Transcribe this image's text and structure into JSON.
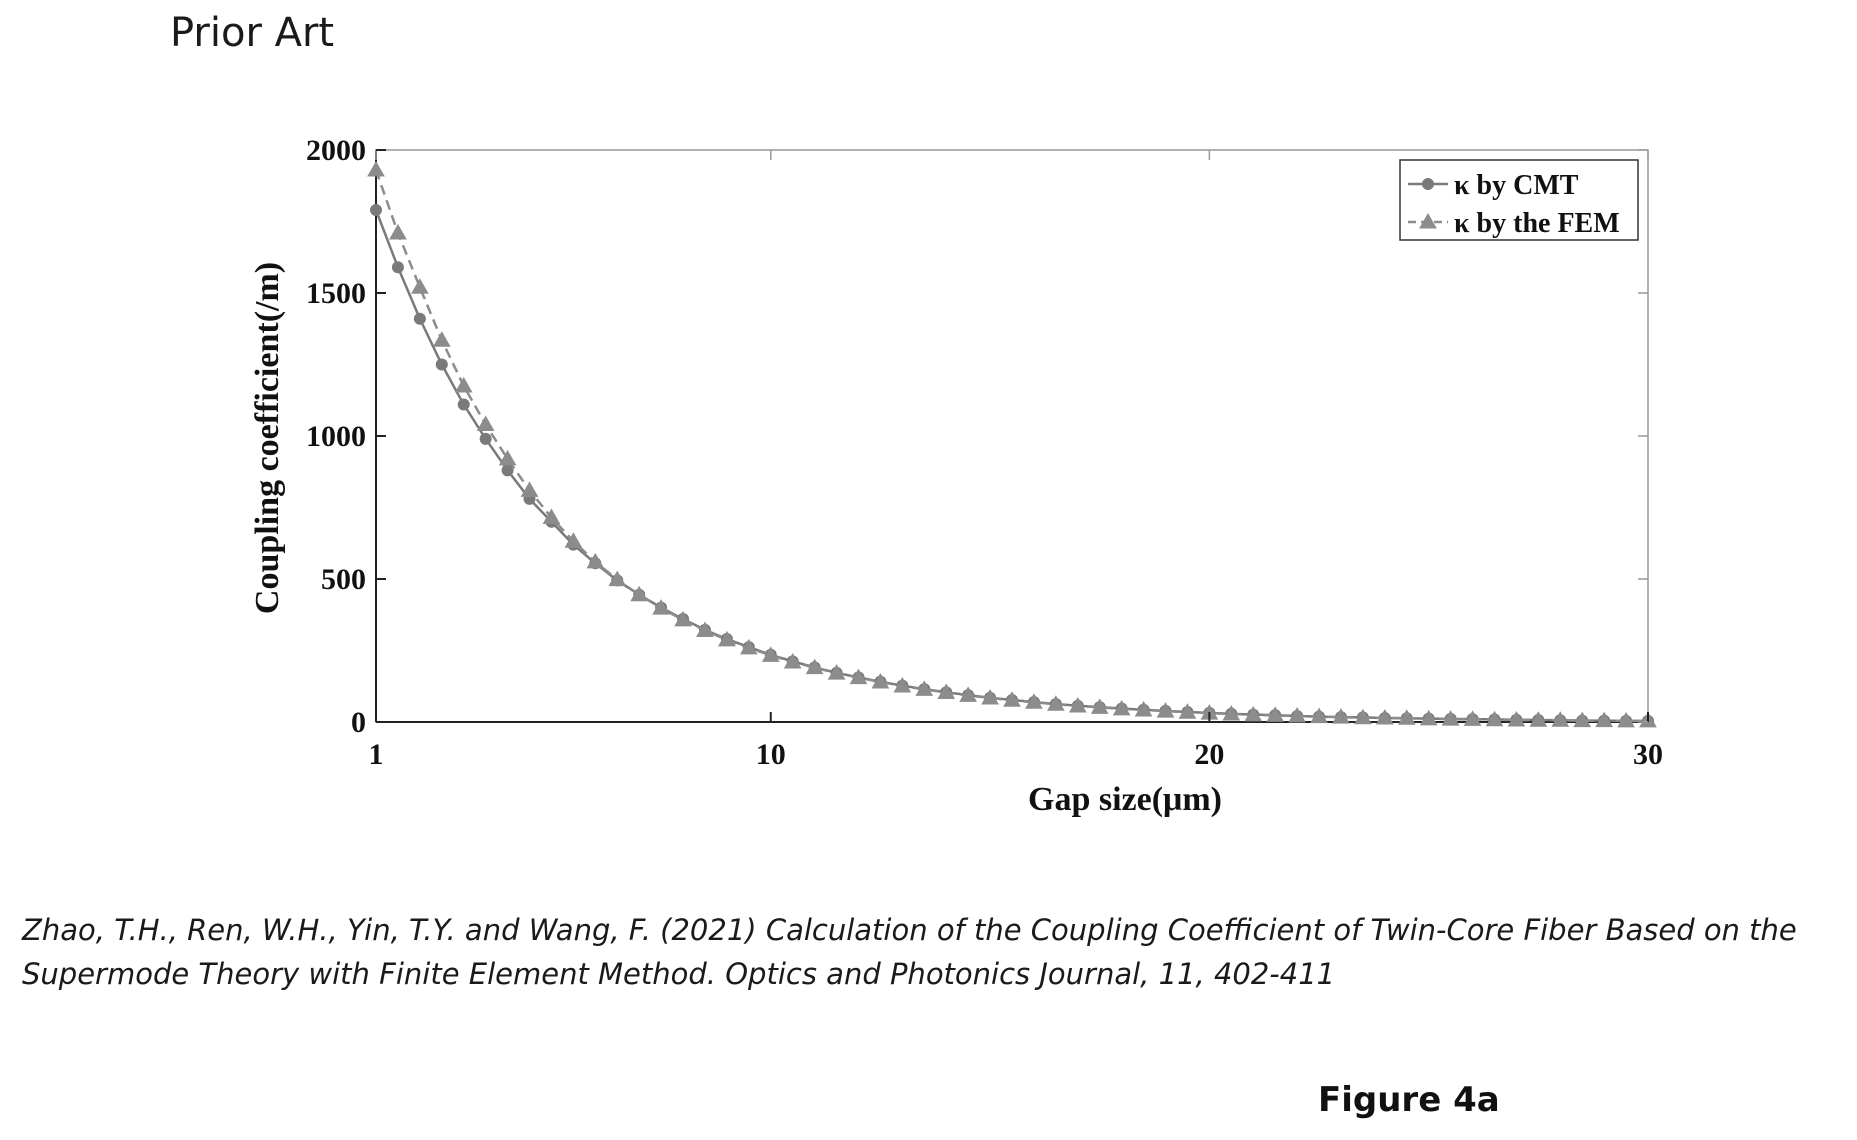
{
  "header": "Prior Art",
  "citation": {
    "line1": "Zhao, T.H., Ren, W.H., Yin, T.Y. and Wang, F. (2021) Calculation of the Coupling Coefficient of Twin-Core Fiber Based on the",
    "line2": "Supermode Theory with Finite Element Method. Optics and Photonics Journal, 11, 402-411"
  },
  "figure_label": "Figure 4a",
  "chart_data": {
    "type": "line",
    "xlabel": "Gap size(μm)",
    "ylabel": "Coupling coefficient(/m)",
    "xlim": [
      1,
      30
    ],
    "ylim": [
      0,
      2000
    ],
    "x_ticks": [
      1,
      10,
      20,
      30
    ],
    "y_ticks": [
      0,
      500,
      1000,
      1500,
      2000
    ],
    "grid": false,
    "legend_position": "top-right",
    "colors": {
      "cmt": "#7a7a7a",
      "fem": "#8c8c8c",
      "axes": "#222222"
    },
    "series": [
      {
        "name": "κ by CMT",
        "marker": "circle",
        "line": "solid",
        "x": [
          1.0,
          1.5,
          2.0,
          2.5,
          3.0,
          3.5,
          4.0,
          4.5,
          5.0,
          5.5,
          6.0,
          6.5,
          7.0,
          7.5,
          8.0,
          8.5,
          9.0,
          9.5,
          10.0,
          10.5,
          11.0,
          11.5,
          12.0,
          12.5,
          13.0,
          13.5,
          14.0,
          14.5,
          15.0,
          15.5,
          16.0,
          16.5,
          17.0,
          17.5,
          18.0,
          18.5,
          19.0,
          19.5,
          20.0,
          20.5,
          21.0,
          21.5,
          22.0,
          22.5,
          23.0,
          23.5,
          24.0,
          24.5,
          25.0,
          25.5,
          26.0,
          26.5,
          27.0,
          27.5,
          28.0,
          28.5,
          29.0,
          29.5,
          30.0
        ],
        "values": [
          1790,
          1590,
          1410,
          1250,
          1110,
          990,
          880,
          780,
          700,
          620,
          555,
          495,
          445,
          400,
          360,
          322,
          290,
          262,
          235,
          212,
          191,
          172,
          156,
          141,
          127,
          115,
          104,
          94,
          85,
          77,
          70,
          63,
          57,
          52,
          47,
          43,
          39,
          35,
          32,
          29,
          26,
          24,
          21,
          19,
          17,
          16,
          14,
          13,
          12,
          11,
          10,
          9,
          8,
          7,
          6,
          5,
          5,
          4,
          4
        ]
      },
      {
        "name": "κ by the FEM",
        "marker": "triangle",
        "line": "dashed",
        "x": [
          1.0,
          1.5,
          2.0,
          2.5,
          3.0,
          3.5,
          4.0,
          4.5,
          5.0,
          5.5,
          6.0,
          6.5,
          7.0,
          7.5,
          8.0,
          8.5,
          9.0,
          9.5,
          10.0,
          10.5,
          11.0,
          11.5,
          12.0,
          12.5,
          13.0,
          13.5,
          14.0,
          14.5,
          15.0,
          15.5,
          16.0,
          16.5,
          17.0,
          17.5,
          18.0,
          18.5,
          19.0,
          19.5,
          20.0,
          20.5,
          21.0,
          21.5,
          22.0,
          22.5,
          23.0,
          23.5,
          24.0,
          24.5,
          25.0,
          25.5,
          26.0,
          26.5,
          27.0,
          27.5,
          28.0,
          28.5,
          29.0,
          29.5,
          30.0
        ],
        "values": [
          1930,
          1710,
          1520,
          1335,
          1175,
          1040,
          920,
          810,
          715,
          632,
          560,
          498,
          445,
          398,
          357,
          320,
          287,
          259,
          233,
          210,
          190,
          171,
          155,
          140,
          126,
          114,
          103,
          93,
          84,
          76,
          69,
          62,
          56,
          51,
          46,
          42,
          38,
          34,
          31,
          28,
          25,
          23,
          21,
          19,
          17,
          15,
          14,
          13,
          11,
          10,
          9,
          8,
          7,
          6,
          6,
          5,
          5,
          4,
          4
        ]
      }
    ]
  }
}
